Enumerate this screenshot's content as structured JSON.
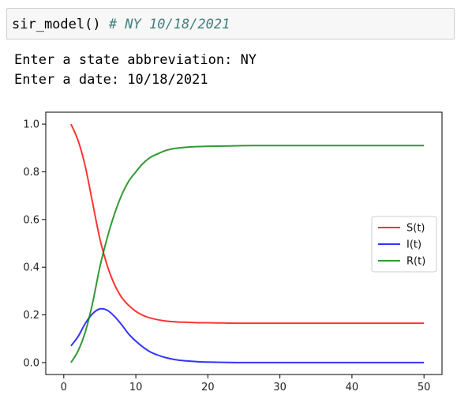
{
  "code_cell": {
    "code": "sir_model() ",
    "comment": "# NY 10/18/2021"
  },
  "output": {
    "lines": [
      "Enter a state abbreviation: NY",
      "Enter a date: 10/18/2021"
    ]
  },
  "chart_data": {
    "type": "line",
    "title": "",
    "xlabel": "",
    "ylabel": "",
    "xlim": [
      -2.5,
      52.5
    ],
    "ylim": [
      -0.05,
      1.05
    ],
    "xticks": [
      0,
      10,
      20,
      30,
      40,
      50
    ],
    "yticks": [
      0.0,
      0.2,
      0.4,
      0.6,
      0.8,
      1.0
    ],
    "xtick_labels": [
      "0",
      "10",
      "20",
      "30",
      "40",
      "50"
    ],
    "ytick_labels": [
      "0.0",
      "0.2",
      "0.4",
      "0.6",
      "0.8",
      "1.0"
    ],
    "grid": false,
    "legend_position": "center-right",
    "x": [
      1,
      2,
      3,
      4,
      5,
      6,
      7,
      8,
      9,
      10,
      11,
      12,
      13,
      14,
      15,
      16,
      17,
      18,
      19,
      20,
      22,
      24,
      26,
      28,
      30,
      35,
      40,
      45,
      50
    ],
    "series": [
      {
        "name": "S(t)",
        "color": "#ff0000",
        "values": [
          1.0,
          0.93,
          0.82,
          0.67,
          0.52,
          0.41,
          0.33,
          0.275,
          0.24,
          0.215,
          0.198,
          0.187,
          0.18,
          0.175,
          0.172,
          0.17,
          0.169,
          0.168,
          0.167,
          0.167,
          0.166,
          0.165,
          0.165,
          0.165,
          0.165,
          0.165,
          0.165,
          0.165,
          0.165
        ]
      },
      {
        "name": "I(t)",
        "color": "#0000ff",
        "values": [
          0.07,
          0.11,
          0.165,
          0.205,
          0.225,
          0.22,
          0.195,
          0.16,
          0.12,
          0.09,
          0.065,
          0.045,
          0.032,
          0.022,
          0.015,
          0.01,
          0.007,
          0.005,
          0.003,
          0.002,
          0.001,
          0.0,
          0.0,
          0.0,
          0.0,
          0.0,
          0.0,
          0.0,
          0.0
        ]
      },
      {
        "name": "R(t)",
        "color": "#008000",
        "values": [
          0.0,
          0.05,
          0.13,
          0.25,
          0.4,
          0.52,
          0.62,
          0.7,
          0.76,
          0.8,
          0.835,
          0.86,
          0.875,
          0.888,
          0.896,
          0.9,
          0.903,
          0.905,
          0.906,
          0.907,
          0.908,
          0.909,
          0.91,
          0.91,
          0.91,
          0.91,
          0.91,
          0.91,
          0.91
        ]
      }
    ]
  }
}
